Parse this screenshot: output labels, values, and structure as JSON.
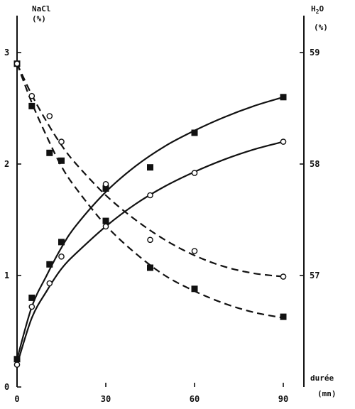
{
  "chart_data": {
    "type": "scatter",
    "left_axis": {
      "label_line1": "NaCl",
      "label_line2": "(%)",
      "ticks": [
        "0",
        "1",
        "2",
        "3"
      ],
      "ylim": [
        0,
        3.4
      ]
    },
    "right_axis": {
      "label_line1": "H2O",
      "label_line2": "(%)",
      "ticks": [
        "57",
        "58",
        "59"
      ],
      "tick_values_left_scale": [
        1,
        2,
        3
      ]
    },
    "x_axis": {
      "label": "(mn)",
      "caption": "durée",
      "ticks": [
        "0",
        "30",
        "60",
        "90"
      ],
      "xlim": [
        0,
        98
      ]
    },
    "series": [
      {
        "axis": "left",
        "marker": "filled-square",
        "line": "solid",
        "points": [
          [
            0,
            0.25
          ],
          [
            5,
            0.8
          ],
          [
            11,
            1.1
          ],
          [
            15,
            1.3
          ],
          [
            30,
            1.78
          ],
          [
            45,
            1.97
          ],
          [
            60,
            2.28
          ],
          [
            90,
            2.6
          ]
        ]
      },
      {
        "axis": "left",
        "marker": "open-circle",
        "line": "solid",
        "points": [
          [
            0,
            0.2
          ],
          [
            5,
            0.72
          ],
          [
            11,
            0.93
          ],
          [
            15,
            1.17
          ],
          [
            30,
            1.44
          ],
          [
            45,
            1.72
          ],
          [
            60,
            1.92
          ],
          [
            90,
            2.2
          ]
        ]
      },
      {
        "axis": "right",
        "marker": "filled-square",
        "line": "dashed",
        "points": [
          [
            0,
            58.9
          ],
          [
            5,
            58.52
          ],
          [
            11,
            58.1
          ],
          [
            15,
            58.03
          ],
          [
            30,
            57.49
          ],
          [
            45,
            57.07
          ],
          [
            60,
            56.88
          ],
          [
            90,
            56.63
          ]
        ]
      },
      {
        "axis": "right",
        "marker": "open-circle",
        "line": "dashed",
        "points": [
          [
            0,
            58.9
          ],
          [
            5,
            58.61
          ],
          [
            11,
            58.43
          ],
          [
            15,
            58.2
          ],
          [
            30,
            57.82
          ],
          [
            45,
            57.32
          ],
          [
            60,
            57.22
          ],
          [
            90,
            56.99
          ]
        ]
      }
    ],
    "curves": [
      {
        "points": [
          [
            0,
            0.25
          ],
          [
            5,
            0.72
          ],
          [
            10,
            1.0
          ],
          [
            15,
            1.25
          ],
          [
            20,
            1.45
          ],
          [
            30,
            1.75
          ],
          [
            40,
            1.98
          ],
          [
            50,
            2.16
          ],
          [
            60,
            2.3
          ],
          [
            70,
            2.42
          ],
          [
            80,
            2.52
          ],
          [
            90,
            2.6
          ]
        ],
        "style": "solid"
      },
      {
        "points": [
          [
            0,
            0.2
          ],
          [
            5,
            0.62
          ],
          [
            10,
            0.86
          ],
          [
            15,
            1.06
          ],
          [
            20,
            1.2
          ],
          [
            30,
            1.44
          ],
          [
            40,
            1.64
          ],
          [
            50,
            1.8
          ],
          [
            60,
            1.93
          ],
          [
            70,
            2.04
          ],
          [
            80,
            2.13
          ],
          [
            90,
            2.2
          ]
        ],
        "style": "solid"
      },
      {
        "points": [
          [
            0,
            58.9
          ],
          [
            5,
            58.55
          ],
          [
            10,
            58.25
          ],
          [
            15,
            57.98
          ],
          [
            20,
            57.78
          ],
          [
            30,
            57.45
          ],
          [
            40,
            57.2
          ],
          [
            50,
            57.0
          ],
          [
            60,
            56.86
          ],
          [
            70,
            56.75
          ],
          [
            80,
            56.67
          ],
          [
            90,
            56.62
          ]
        ],
        "style": "dashed"
      },
      {
        "points": [
          [
            0,
            58.9
          ],
          [
            5,
            58.62
          ],
          [
            10,
            58.38
          ],
          [
            15,
            58.17
          ],
          [
            20,
            58.0
          ],
          [
            30,
            57.72
          ],
          [
            40,
            57.5
          ],
          [
            50,
            57.32
          ],
          [
            60,
            57.18
          ],
          [
            70,
            57.08
          ],
          [
            80,
            57.02
          ],
          [
            90,
            56.99
          ]
        ],
        "style": "dashed"
      }
    ]
  }
}
